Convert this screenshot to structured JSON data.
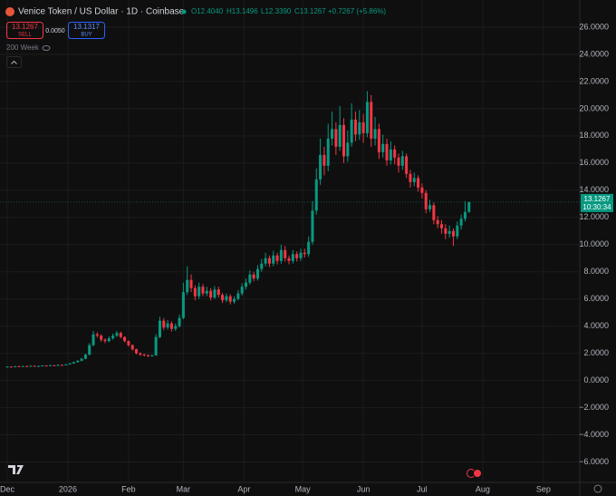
{
  "chart_data": {
    "type": "candlestick",
    "header": {
      "symbol": "Venice Token / US Dollar · 1D · Coinbase",
      "open": "O12.4040",
      "high": "H13.1496",
      "low": "L12.3390",
      "close": "C13.1267",
      "change": "+0.7267 (+5.86%)",
      "sell_price": "13.1267",
      "sell": "SELL",
      "spread": "0.0050",
      "buy_price": "13.1317",
      "buy": "BUY",
      "indicator": "200 Week"
    },
    "last_price_label": {
      "price": "13.1267",
      "countdown": "10:30:34"
    },
    "up_color": "#089981",
    "down_color": "#f23645",
    "xlim": [
      -3.7,
      292.6
    ],
    "ylim": [
      -7.7,
      28
    ],
    "xticks": [
      {
        "value": 0,
        "label": "Dec"
      },
      {
        "value": 31,
        "label": "2026"
      },
      {
        "value": 62,
        "label": "Feb"
      },
      {
        "value": 90,
        "label": "Mar"
      },
      {
        "value": 121,
        "label": "Apr"
      },
      {
        "value": 151,
        "label": "May"
      },
      {
        "value": 182,
        "label": "Jun"
      },
      {
        "value": 212,
        "label": "Jul"
      },
      {
        "value": 243,
        "label": "Aug"
      },
      {
        "value": 274,
        "label": "Sep"
      }
    ],
    "yticks": [
      {
        "value": -6,
        "label": "−6.0000"
      },
      {
        "value": -4,
        "label": "−4.0000"
      },
      {
        "value": -2,
        "label": "−2.0000"
      },
      {
        "value": 0,
        "label": "0.0000"
      },
      {
        "value": 2,
        "label": "2.0000"
      },
      {
        "value": 4,
        "label": "4.0000"
      },
      {
        "value": 6,
        "label": "6.0000"
      },
      {
        "value": 8,
        "label": "8.0000"
      },
      {
        "value": 10,
        "label": "10.0000"
      },
      {
        "value": 12,
        "label": "12.0000"
      },
      {
        "value": 14,
        "label": "14.0000"
      },
      {
        "value": 16,
        "label": "16.0000"
      },
      {
        "value": 18,
        "label": "18.0000"
      },
      {
        "value": 20,
        "label": "20.0000"
      },
      {
        "value": 22,
        "label": "22.0000"
      },
      {
        "value": 24,
        "label": "24.0000"
      },
      {
        "value": 26,
        "label": "26.0000"
      }
    ],
    "grid": true,
    "x": [
      0,
      2,
      4,
      6,
      8,
      10,
      12,
      14,
      16,
      18,
      20,
      22,
      24,
      26,
      28,
      30,
      32,
      34,
      36,
      38,
      40,
      42,
      44,
      46,
      48,
      50,
      52,
      54,
      56,
      58,
      60,
      62,
      64,
      66,
      68,
      70,
      72,
      74,
      76,
      78,
      80,
      82,
      84,
      86,
      88,
      90,
      92,
      94,
      96,
      98,
      100,
      102,
      104,
      106,
      108,
      110,
      112,
      114,
      116,
      118,
      120,
      122,
      124,
      126,
      128,
      130,
      132,
      134,
      136,
      138,
      140,
      142,
      144,
      146,
      148,
      150,
      152,
      154,
      156,
      158,
      160,
      162,
      164,
      166,
      168,
      170,
      172,
      174,
      176,
      178,
      180,
      182,
      184,
      186,
      188,
      190,
      192,
      194,
      196,
      198,
      200,
      202,
      204,
      206,
      208,
      210,
      212,
      214,
      216,
      218,
      220,
      222,
      224,
      226,
      228,
      230,
      232,
      234,
      236
    ],
    "open": [
      1.0,
      1.02,
      1.0,
      1.05,
      1.03,
      1.06,
      1.04,
      1.08,
      1.05,
      1.07,
      1.1,
      1.08,
      1.12,
      1.1,
      1.15,
      1.13,
      1.18,
      1.25,
      1.35,
      1.45,
      1.6,
      1.9,
      2.6,
      3.4,
      3.3,
      3.0,
      2.9,
      3.1,
      3.3,
      3.5,
      3.2,
      2.9,
      2.6,
      2.3,
      2.0,
      1.9,
      1.85,
      1.8,
      1.85,
      3.2,
      4.4,
      3.9,
      4.2,
      3.8,
      4.0,
      4.6,
      6.5,
      7.4,
      6.8,
      6.2,
      6.9,
      6.4,
      6.6,
      6.1,
      6.7,
      6.3,
      5.9,
      6.2,
      5.8,
      6.0,
      6.4,
      6.9,
      7.2,
      7.8,
      7.5,
      8.2,
      8.6,
      9.0,
      8.6,
      9.2,
      8.8,
      9.6,
      9.0,
      8.8,
      9.3,
      9.0,
      9.4,
      9.3,
      10.2,
      12.5,
      14.8,
      16.6,
      15.8,
      17.8,
      18.5,
      17.2,
      18.8,
      16.5,
      17.5,
      19.2,
      18.1,
      19.0,
      18.2,
      20.5,
      17.8,
      18.5,
      16.8,
      17.4,
      16.2,
      17.0,
      16.4,
      15.8,
      16.5,
      15.2,
      14.6,
      14.9,
      14.2,
      13.8,
      12.6,
      12.9,
      11.8,
      11.5,
      11.2,
      10.8,
      11.0,
      10.6,
      11.4,
      11.9,
      12.404
    ],
    "high": [
      1.04,
      1.05,
      1.07,
      1.08,
      1.09,
      1.09,
      1.11,
      1.1,
      1.1,
      1.13,
      1.13,
      1.15,
      1.15,
      1.18,
      1.18,
      1.22,
      1.29,
      1.39,
      1.5,
      1.66,
      1.98,
      2.75,
      3.65,
      3.55,
      3.4,
      3.1,
      3.25,
      3.45,
      3.65,
      3.6,
      3.25,
      2.95,
      2.65,
      2.35,
      2.08,
      1.98,
      1.92,
      1.9,
      3.4,
      4.7,
      4.6,
      4.45,
      4.35,
      4.2,
      4.85,
      7.2,
      8.4,
      7.8,
      7.0,
      7.2,
      7.1,
      6.9,
      6.8,
      6.95,
      6.9,
      6.45,
      6.4,
      6.35,
      6.2,
      6.65,
      7.15,
      7.5,
      8.1,
      8.0,
      8.5,
      8.95,
      9.4,
      9.2,
      9.55,
      9.4,
      10.0,
      9.9,
      9.2,
      9.6,
      9.5,
      9.7,
      9.7,
      10.6,
      13.2,
      15.6,
      17.8,
      17.2,
      18.9,
      19.8,
      19.0,
      20.2,
      19.3,
      18.4,
      20.4,
      19.8,
      19.9,
      19.6,
      21.3,
      21.0,
      19.4,
      18.9,
      18.1,
      17.8,
      17.6,
      17.3,
      16.7,
      16.9,
      16.7,
      15.5,
      15.3,
      15.1,
      14.5,
      14.0,
      13.3,
      13.1,
      12.1,
      11.8,
      11.5,
      11.4,
      11.2,
      11.7,
      12.2,
      13.2,
      13.1496
    ],
    "low": [
      0.98,
      0.98,
      0.99,
      1.01,
      1.01,
      1.02,
      1.02,
      1.03,
      1.03,
      1.05,
      1.06,
      1.06,
      1.08,
      1.08,
      1.11,
      1.11,
      1.16,
      1.22,
      1.31,
      1.41,
      1.56,
      1.85,
      2.52,
      3.15,
      2.85,
      2.75,
      2.8,
      3.0,
      3.2,
      3.1,
      2.8,
      2.5,
      2.2,
      1.92,
      1.82,
      1.78,
      1.74,
      1.75,
      1.82,
      3.1,
      3.7,
      3.75,
      3.6,
      3.65,
      3.9,
      4.5,
      6.3,
      6.5,
      5.9,
      6.0,
      6.2,
      6.2,
      5.9,
      6.0,
      6.1,
      5.7,
      5.75,
      5.6,
      5.65,
      5.9,
      6.25,
      6.7,
      7.05,
      7.3,
      7.35,
      8.0,
      8.4,
      8.35,
      8.4,
      8.55,
      8.6,
      8.75,
      8.55,
      8.6,
      8.75,
      8.8,
      9.05,
      9.1,
      10.0,
      12.2,
      14.4,
      15.1,
      15.4,
      17.3,
      16.6,
      16.9,
      16.0,
      16.1,
      17.2,
      17.6,
      17.7,
      17.5,
      17.9,
      17.2,
      17.3,
      16.3,
      16.4,
      15.8,
      15.9,
      15.9,
      15.3,
      15.5,
      14.9,
      14.2,
      14.3,
      13.9,
      13.4,
      12.3,
      12.4,
      11.5,
      11.2,
      10.8,
      10.4,
      10.5,
      9.9,
      10.4,
      11.1,
      11.7,
      12.339
    ],
    "close": [
      1.02,
      1.0,
      1.05,
      1.03,
      1.06,
      1.04,
      1.08,
      1.05,
      1.07,
      1.1,
      1.08,
      1.12,
      1.1,
      1.15,
      1.13,
      1.18,
      1.25,
      1.35,
      1.45,
      1.6,
      1.9,
      2.6,
      3.4,
      3.3,
      3.0,
      2.9,
      3.1,
      3.3,
      3.5,
      3.2,
      2.9,
      2.6,
      2.3,
      2.0,
      1.9,
      1.85,
      1.8,
      1.85,
      3.2,
      4.4,
      3.9,
      4.2,
      3.8,
      4.0,
      4.6,
      6.5,
      7.4,
      6.8,
      6.2,
      6.9,
      6.4,
      6.6,
      6.1,
      6.7,
      6.3,
      5.9,
      6.2,
      5.8,
      6.0,
      6.4,
      6.9,
      7.2,
      7.8,
      7.5,
      8.2,
      8.6,
      9.0,
      8.6,
      9.2,
      8.8,
      9.6,
      9.0,
      8.8,
      9.3,
      9.0,
      9.4,
      9.3,
      10.2,
      12.5,
      14.8,
      16.6,
      15.8,
      17.8,
      18.5,
      17.2,
      18.8,
      16.5,
      17.5,
      19.2,
      18.1,
      19.0,
      18.2,
      20.5,
      17.8,
      18.5,
      16.8,
      17.4,
      16.2,
      17.0,
      16.4,
      15.8,
      16.5,
      15.2,
      14.6,
      14.9,
      14.2,
      13.8,
      12.6,
      12.9,
      11.8,
      11.5,
      11.2,
      10.8,
      11.0,
      10.6,
      11.4,
      11.9,
      12.4,
      13.1267
    ]
  }
}
